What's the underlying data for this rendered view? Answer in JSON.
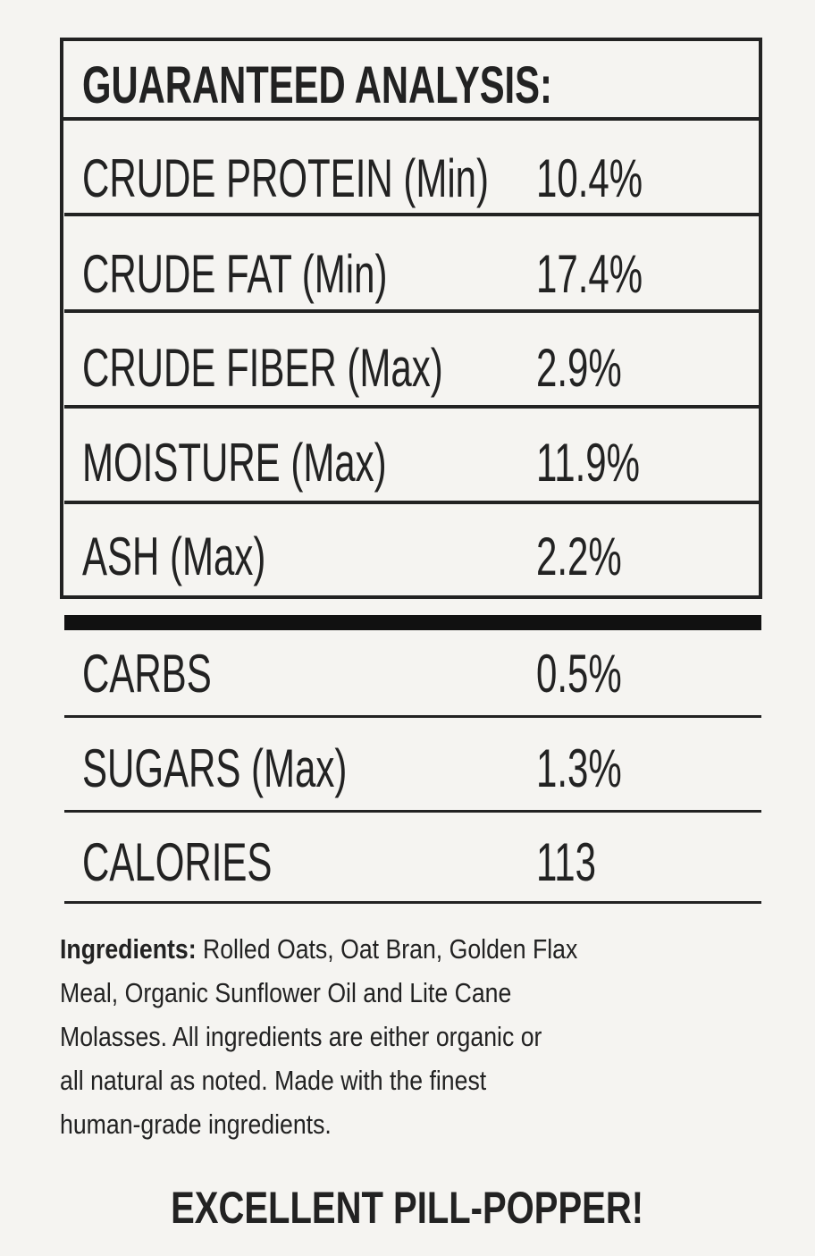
{
  "guaranteed_analysis": {
    "title": "GUARANTEED ANALYSIS:",
    "rows": [
      {
        "label": "CRUDE PROTEIN (Min)",
        "value": "10.4%"
      },
      {
        "label": "CRUDE FAT (Min)",
        "value": "17.4%"
      },
      {
        "label": "CRUDE FIBER (Max)",
        "value": "2.9%"
      },
      {
        "label": "MOISTURE (Max)",
        "value": "11.9%"
      },
      {
        "label": "ASH (Max)",
        "value": "2.2%"
      }
    ]
  },
  "extra": {
    "rows": [
      {
        "label": "CARBS",
        "value": "0.5%"
      },
      {
        "label": "SUGARS (Max)",
        "value": "1.3%"
      },
      {
        "label": "CALORIES",
        "value": "113"
      }
    ]
  },
  "ingredients": {
    "label": "Ingredients:",
    "lines": [
      " Rolled Oats, Oat Bran, Golden Flax",
      "Meal, Organic Sunflower Oil and Lite Cane",
      "Molasses. All ingredients are either organic or",
      "all natural as noted. Made with the finest",
      "human-grade ingredients."
    ]
  },
  "tagline": "EXCELLENT PILL-POPPER!"
}
